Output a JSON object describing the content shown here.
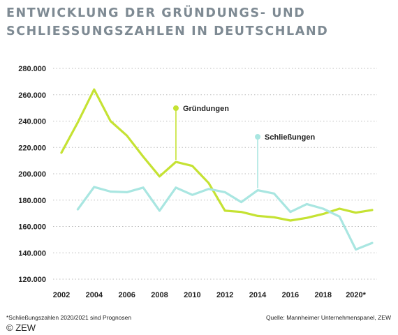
{
  "title_line1": "ENTWICKLUNG DER GRÜNDUNGS- UND",
  "title_line2": "SCHLIESSUNGSZAHLEN IN DEUTSCHLAND",
  "footnote": "*Schließungszahlen 2020/2021 sind Prognosen",
  "source": "Quelle: Mannheimer Unternehmenspanel, ZEW",
  "copyright": "© ZEW",
  "colors": {
    "gruendungen": "#c5e233",
    "schliessungen": "#a9e6e1",
    "grid": "#bbbbbb",
    "title": "#7e8a93"
  },
  "chart_data": {
    "type": "line",
    "x": [
      2002,
      2003,
      2004,
      2005,
      2006,
      2007,
      2008,
      2009,
      2010,
      2011,
      2012,
      2013,
      2014,
      2015,
      2016,
      2017,
      2018,
      2019,
      2020,
      2021
    ],
    "xlim": [
      2002,
      2021
    ],
    "ylim": [
      120000,
      280000
    ],
    "yticks": [
      120000,
      140000,
      160000,
      180000,
      200000,
      220000,
      240000,
      260000,
      280000
    ],
    "ytick_labels": [
      "120.000",
      "140.000",
      "160.000",
      "180.000",
      "200.000",
      "220.000",
      "240.000",
      "260.000",
      "280.000"
    ],
    "xticks": [
      2002,
      2004,
      2006,
      2008,
      2010,
      2012,
      2014,
      2016,
      2018,
      2020
    ],
    "xtick_labels": [
      "2002",
      "2004",
      "2006",
      "2008",
      "2010",
      "2012",
      "2014",
      "2016",
      "2018",
      "2020*"
    ],
    "grid": "horizontal-dotted",
    "series": [
      {
        "name": "Gründungen",
        "color": "#c5e233",
        "label_year": 2009,
        "values": [
          216000,
          239000,
          264000,
          240000,
          229000,
          213000,
          198000,
          209000,
          206000,
          193000,
          172000,
          171000,
          168000,
          167000,
          164500,
          166500,
          169500,
          173500,
          170500,
          172500
        ]
      },
      {
        "name": "Schließungen",
        "color": "#a9e6e1",
        "label_year": 2014,
        "values": [
          null,
          173000,
          190000,
          186500,
          186000,
          189500,
          172000,
          189500,
          184000,
          188500,
          186000,
          178500,
          187500,
          185000,
          171000,
          177000,
          173500,
          167500,
          142500,
          147500
        ]
      }
    ]
  }
}
